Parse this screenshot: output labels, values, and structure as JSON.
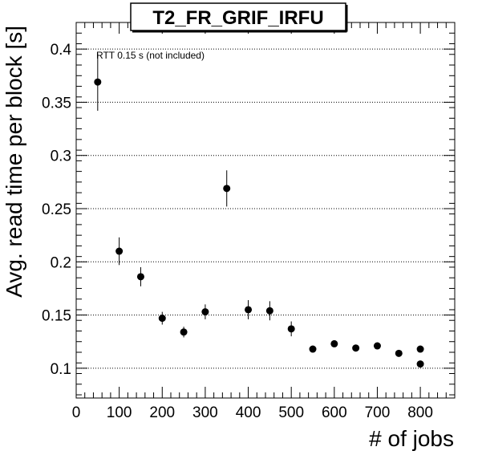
{
  "chart_data": {
    "type": "scatter",
    "title": "T2_FR_GRIF_IRFU",
    "xlabel": "# of jobs",
    "ylabel": "Avg. read time per block [s]",
    "annotation": "RTT 0.15 s (not included)",
    "xlim": [
      0,
      880
    ],
    "ylim": [
      0.072,
      0.425
    ],
    "xticks": [
      0,
      100,
      200,
      300,
      400,
      500,
      600,
      700,
      800
    ],
    "yticks": [
      0.1,
      0.15,
      0.2,
      0.25,
      0.3,
      0.35,
      0.4
    ],
    "ytick_labels": [
      "0.1",
      "0.15",
      "0.2",
      "0.25",
      "0.3",
      "0.35",
      "0.4"
    ],
    "grid": "horizontal dotted",
    "points": [
      {
        "x": 50,
        "y": 0.369,
        "err": 0.027
      },
      {
        "x": 100,
        "y": 0.21,
        "err": 0.013
      },
      {
        "x": 150,
        "y": 0.186,
        "err": 0.009
      },
      {
        "x": 200,
        "y": 0.147,
        "err": 0.006
      },
      {
        "x": 250,
        "y": 0.134,
        "err": 0.005
      },
      {
        "x": 300,
        "y": 0.153,
        "err": 0.007
      },
      {
        "x": 350,
        "y": 0.269,
        "err": 0.017
      },
      {
        "x": 400,
        "y": 0.155,
        "err": 0.009
      },
      {
        "x": 450,
        "y": 0.154,
        "err": 0.009
      },
      {
        "x": 500,
        "y": 0.137,
        "err": 0.007
      },
      {
        "x": 550,
        "y": 0.118,
        "err": 0.003
      },
      {
        "x": 600,
        "y": 0.123,
        "err": 0.003
      },
      {
        "x": 650,
        "y": 0.119,
        "err": 0.003
      },
      {
        "x": 700,
        "y": 0.121,
        "err": 0.003
      },
      {
        "x": 750,
        "y": 0.114,
        "err": 0.003
      },
      {
        "x": 800,
        "y": 0.118,
        "err": 0.003
      },
      {
        "x": 800,
        "y": 0.104,
        "err": 0.003
      }
    ]
  }
}
